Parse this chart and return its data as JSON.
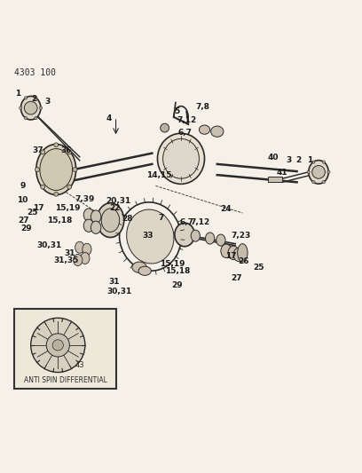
{
  "title": "4303 100",
  "bg_color": "#f5f0e8",
  "line_color": "#2a2a2a",
  "label_color": "#1a1a1a"
}
